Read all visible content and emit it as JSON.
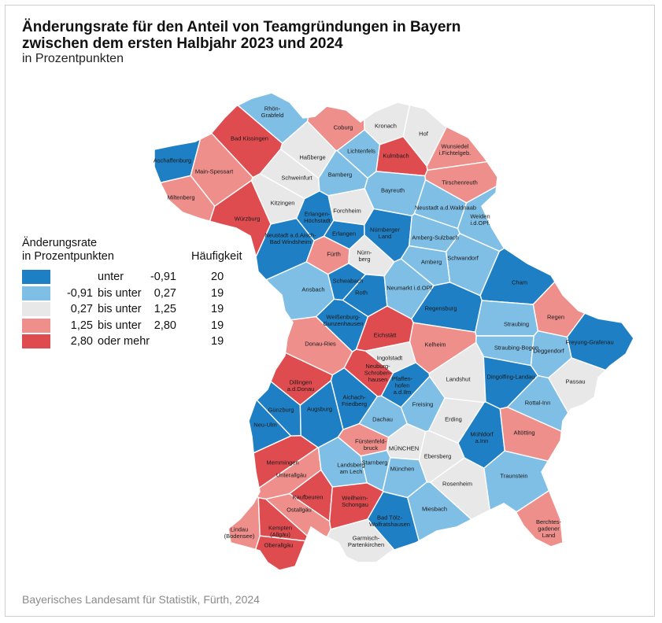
{
  "title": {
    "line1": "Änderungsrate für den Anteil von Teamgründungen in Bayern",
    "line2": "zwischen dem ersten Halbjahr 2023 und 2024"
  },
  "subtitle": "in Prozentpunkten",
  "legend": {
    "title_line1": "Änderungsrate",
    "title_line2": "in Prozentpunkten",
    "frequency_header": "Häufigkeit",
    "classes": [
      {
        "lo": "",
        "mid": "unter",
        "hi": "-0,91",
        "count": "20",
        "color": "#1f7fc4"
      },
      {
        "lo": "-0,91",
        "mid": "bis unter",
        "hi": "0,27",
        "count": "19",
        "color": "#7fbfe6"
      },
      {
        "lo": "0,27",
        "mid": "bis unter",
        "hi": "1,25",
        "count": "19",
        "color": "#e8e8e8"
      },
      {
        "lo": "1,25",
        "mid": "bis unter",
        "hi": "2,80",
        "count": "19",
        "color": "#ee8f8c"
      },
      {
        "lo": "2,80",
        "mid": "oder mehr",
        "hi": "",
        "count": "19",
        "color": "#df4c50"
      }
    ]
  },
  "regions": [
    {
      "name": "Rhön-\nGrabfeld",
      "cls": 1
    },
    {
      "name": "Bad Kissingen",
      "cls": 4
    },
    {
      "name": "Coburg",
      "cls": 3
    },
    {
      "name": "Kronach",
      "cls": 2
    },
    {
      "name": "Hof",
      "cls": 2
    },
    {
      "name": "Aschaffenburg",
      "cls": 0
    },
    {
      "name": "Haßberge",
      "cls": 2
    },
    {
      "name": "Lichtenfels",
      "cls": 1
    },
    {
      "name": "Kulmbach",
      "cls": 4
    },
    {
      "name": "Wunsiedel\ni.Fichtelgeb.",
      "cls": 3
    },
    {
      "name": "Main-Spessart",
      "cls": 3
    },
    {
      "name": "Schweinfurt",
      "cls": 2
    },
    {
      "name": "Bamberg",
      "cls": 1
    },
    {
      "name": "Bayreuth",
      "cls": 1
    },
    {
      "name": "Tirschenreuth",
      "cls": 3
    },
    {
      "name": "Miltenberg",
      "cls": 3
    },
    {
      "name": "Kitzingen",
      "cls": 2
    },
    {
      "name": "Forchheim",
      "cls": 2
    },
    {
      "name": "Neustadt a.d.Waldnaab",
      "cls": 1
    },
    {
      "name": "Weiden\ni.d.OPf.",
      "cls": 1
    },
    {
      "name": "Würzburg",
      "cls": 4
    },
    {
      "name": "Erlangen-\nHöchstadt",
      "cls": 0
    },
    {
      "name": "Erlangen",
      "cls": 0
    },
    {
      "name": "Neustadt a.d.Aisch-\nBad Windsheim",
      "cls": 0
    },
    {
      "name": "Nürnberger\nLand",
      "cls": 0
    },
    {
      "name": "Amberg-Sulzbach",
      "cls": 1
    },
    {
      "name": "Fürth",
      "cls": 3
    },
    {
      "name": "Nürn-\nberg",
      "cls": 2
    },
    {
      "name": "Amberg",
      "cls": 1
    },
    {
      "name": "Schwandorf",
      "cls": 1
    },
    {
      "name": "Cham",
      "cls": 0
    },
    {
      "name": "Schwabach",
      "cls": 0
    },
    {
      "name": "Ansbach",
      "cls": 1
    },
    {
      "name": "Roth",
      "cls": 0
    },
    {
      "name": "Neumarkt i.d.OPf.",
      "cls": 1
    },
    {
      "name": "Regensburg",
      "cls": 0
    },
    {
      "name": "Regen",
      "cls": 3
    },
    {
      "name": "Weißenburg-\nGunzenhausen",
      "cls": 0
    },
    {
      "name": "Straubing",
      "cls": 1
    },
    {
      "name": "Eichstätt",
      "cls": 4
    },
    {
      "name": "Kelheim",
      "cls": 3
    },
    {
      "name": "Donau-Ries",
      "cls": 3
    },
    {
      "name": "Straubing-Bogen",
      "cls": 1
    },
    {
      "name": "Deggendorf",
      "cls": 1
    },
    {
      "name": "Freyung-Grafenau",
      "cls": 0
    },
    {
      "name": "Ingolstadt",
      "cls": 2
    },
    {
      "name": "Neuburg-\nSchroben-\nhausen",
      "cls": 4
    },
    {
      "name": "Pfaffen-\nhofen\na.d.Ilm",
      "cls": 0
    },
    {
      "name": "Dillingen\na.d.Donau",
      "cls": 4
    },
    {
      "name": "Landshut",
      "cls": 2
    },
    {
      "name": "Dingolfing-Landau",
      "cls": 0
    },
    {
      "name": "Passau",
      "cls": 2
    },
    {
      "name": "Aichach-\nFriedberg",
      "cls": 0
    },
    {
      "name": "Freising",
      "cls": 1
    },
    {
      "name": "Günzburg",
      "cls": 0
    },
    {
      "name": "Augsburg",
      "cls": 0
    },
    {
      "name": "Rottal-Inn",
      "cls": 1
    },
    {
      "name": "Neu-Ulm",
      "cls": 0
    },
    {
      "name": "Dachau",
      "cls": 1
    },
    {
      "name": "Erding",
      "cls": 2
    },
    {
      "name": "Mühldorf\na.Inn",
      "cls": 0
    },
    {
      "name": "Fürstenfeld-\nbruck",
      "cls": 3
    },
    {
      "name": "MÜNCHEN",
      "cls": 2
    },
    {
      "name": "Altötting",
      "cls": 3
    },
    {
      "name": "Memmingen",
      "cls": 4
    },
    {
      "name": "Ebersberg",
      "cls": 2
    },
    {
      "name": "Landsberg\nam Lech",
      "cls": 1
    },
    {
      "name": "Starnberg",
      "cls": 1
    },
    {
      "name": "München",
      "cls": 1
    },
    {
      "name": "Unterallgäu",
      "cls": 3
    },
    {
      "name": "Rosenheim",
      "cls": 2
    },
    {
      "name": "Traunstein",
      "cls": 1
    },
    {
      "name": "Kaufbeuren",
      "cls": 4
    },
    {
      "name": "Ostallgäu",
      "cls": 3
    },
    {
      "name": "Weilheim-\nSchongau",
      "cls": 4
    },
    {
      "name": "Miesbach",
      "cls": 1
    },
    {
      "name": "Lindau\n(Bodensee)",
      "cls": 3
    },
    {
      "name": "Kempten\n(Allgäu)",
      "cls": 4
    },
    {
      "name": "Bad Tölz-\nWolfratshausen",
      "cls": 0
    },
    {
      "name": "Berchtes-\ngadener\nLand",
      "cls": 3
    },
    {
      "name": "Oberallgäu",
      "cls": 4
    },
    {
      "name": "Garmisch-\nPartenkirchen",
      "cls": 2
    }
  ],
  "source": "Bayerisches Landesamt für Statistik, Fürth, 2024"
}
